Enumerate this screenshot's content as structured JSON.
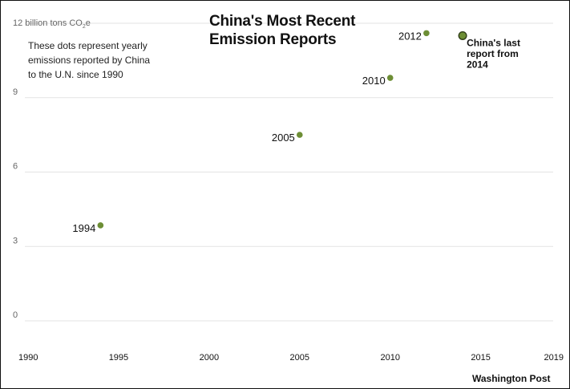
{
  "chart_data": {
    "type": "scatter",
    "title_lines": [
      "China's Most Recent",
      "Emission Reports"
    ],
    "unit_label": {
      "prefix": "12 billion tons CO",
      "sub": "2",
      "suffix": "e"
    },
    "note_lines": [
      "These dots represent yearly",
      "emissions reported by China",
      "to the U.N. since 1990"
    ],
    "xlim": [
      1990,
      2019
    ],
    "ylim": [
      0,
      12
    ],
    "x_ticks": [
      "1990",
      "1995",
      "2000",
      "2005",
      "2010",
      "2015",
      "2019"
    ],
    "y_ticks": [
      "9",
      "6",
      "3",
      "0"
    ],
    "grid": true,
    "points": [
      {
        "x": 1994,
        "y": 3.85,
        "label": "1994"
      },
      {
        "x": 2005,
        "y": 7.5,
        "label": "2005"
      },
      {
        "x": 2010,
        "y": 9.8,
        "label": "2010"
      },
      {
        "x": 2012,
        "y": 11.6,
        "label": "2012"
      },
      {
        "x": 2014,
        "y": 11.5,
        "label": "",
        "highlight": true
      }
    ],
    "callout_lines": [
      "China's last",
      "report from",
      "2014"
    ],
    "source": "Washington Post",
    "colors": {
      "point": "#6d8e35",
      "highlight_fill": "#6d8e35",
      "highlight_stroke": "#2f3d17",
      "grid": "#e3e3e3"
    }
  }
}
